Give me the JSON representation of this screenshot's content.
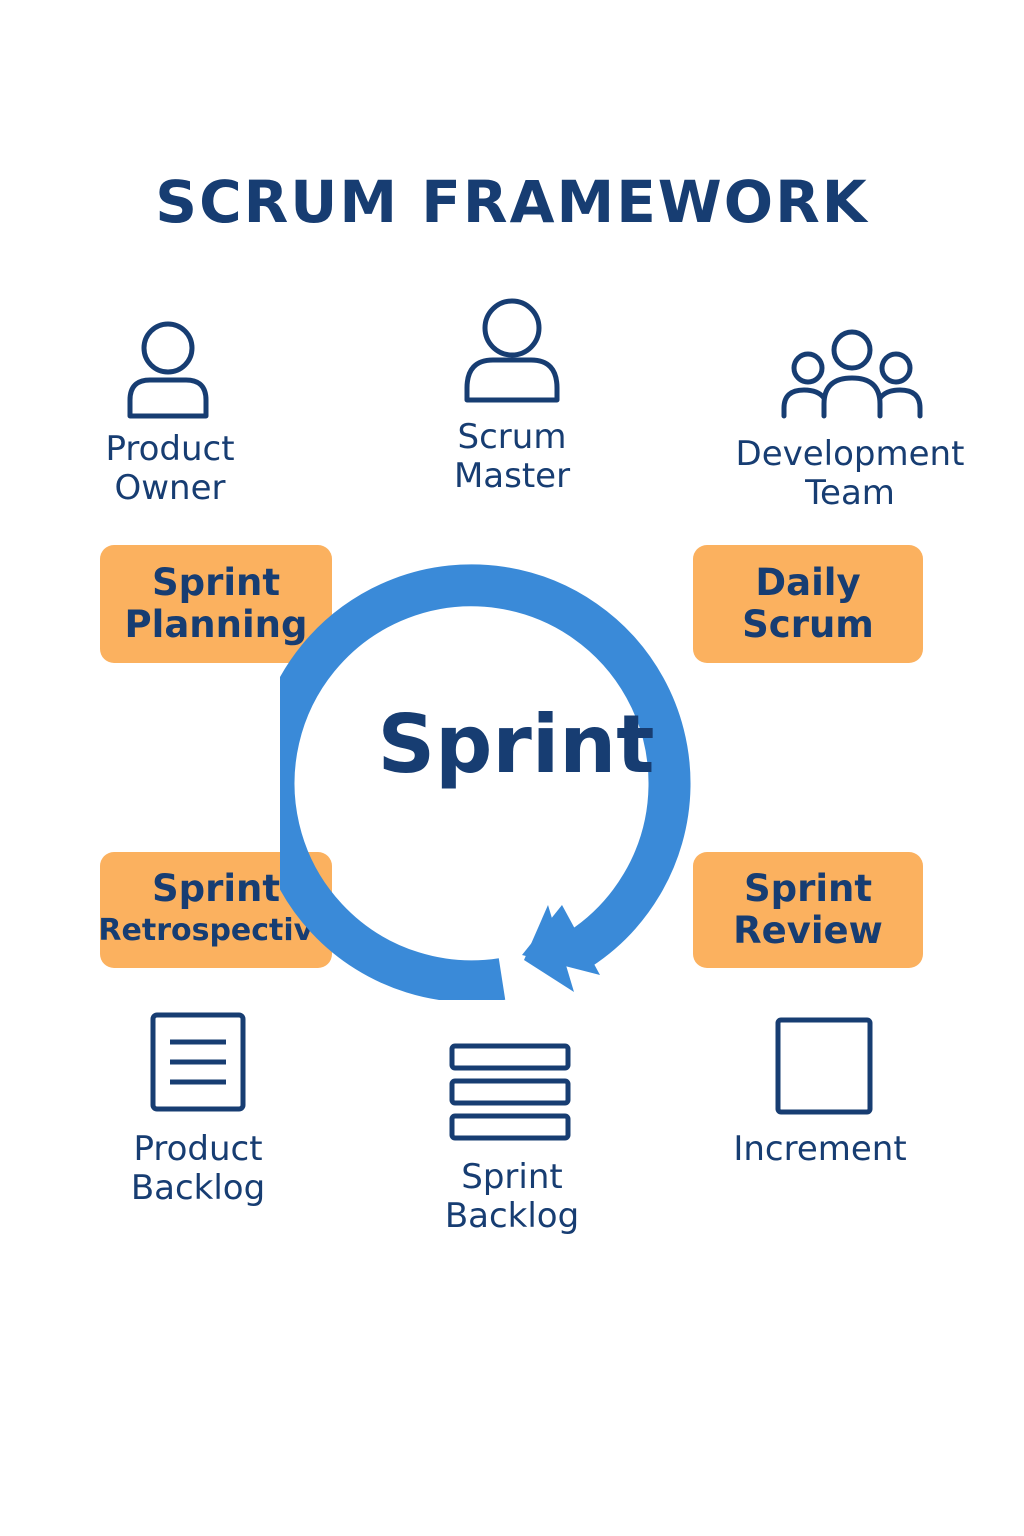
{
  "title": "SCRUM FRAMEWORK",
  "center": "Sprint",
  "roles": [
    {
      "line1": "Product",
      "line2": "Owner",
      "icon": "person-icon"
    },
    {
      "line1": "Scrum",
      "line2": "Master",
      "icon": "person-icon"
    },
    {
      "line1": "Development",
      "line2": "Team",
      "icon": "team-icon"
    }
  ],
  "events": [
    {
      "line1": "Sprint",
      "line2": "Planning"
    },
    {
      "line1": "Daily",
      "line2": "Scrum"
    },
    {
      "line1": "Sprint",
      "line2": "Retrospective"
    },
    {
      "line1": "Sprint",
      "line2": "Review"
    }
  ],
  "artifacts": [
    {
      "line1": "Product",
      "line2": "Backlog",
      "icon": "document-icon"
    },
    {
      "line1": "Sprint",
      "line2": "Backlog",
      "icon": "stacked-bars-icon"
    },
    {
      "line1": "Increment",
      "line2": "",
      "icon": "square-icon"
    }
  ],
  "colors": {
    "navy": "#173d72",
    "blue": "#3a8ad8",
    "orange": "#fbb15f"
  }
}
